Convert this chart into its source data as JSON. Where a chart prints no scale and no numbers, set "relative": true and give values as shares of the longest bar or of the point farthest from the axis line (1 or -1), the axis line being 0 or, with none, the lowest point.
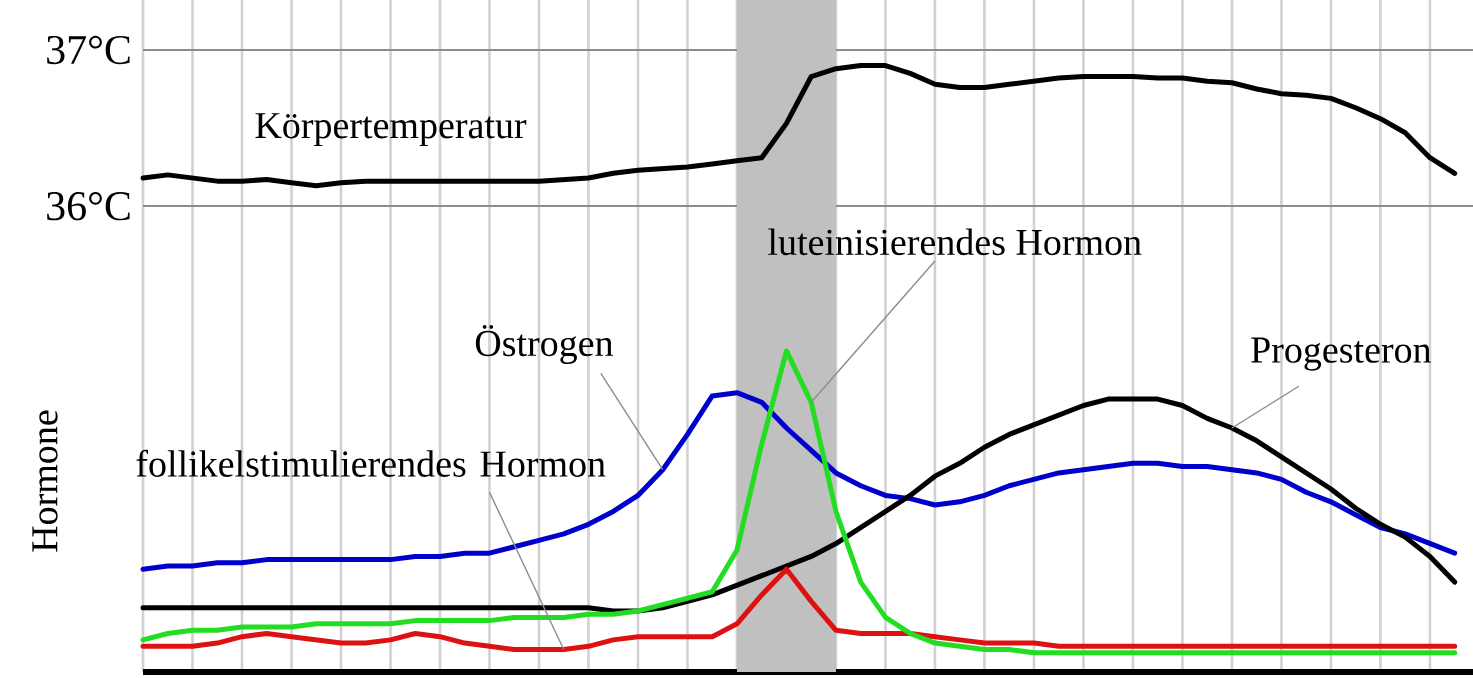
{
  "chart_data": [
    {
      "type": "line",
      "ylim": [
        35.86,
        37.32
      ],
      "grid": true,
      "tick_labels": "y",
      "categories": [
        null,
        null,
        null,
        null,
        null,
        null,
        null,
        null,
        null,
        null,
        null,
        null,
        null,
        null,
        null,
        null,
        null,
        null,
        null,
        null,
        null,
        null,
        null,
        null,
        null,
        null,
        null,
        null,
        null,
        null,
        null,
        null,
        null,
        null,
        null,
        null,
        null,
        null,
        null,
        null,
        null,
        null,
        null,
        null,
        null,
        null,
        null,
        null,
        null,
        null,
        null,
        null,
        null,
        null
      ],
      "yticks": [
        {
          "value": 36,
          "label": "36°C"
        },
        {
          "value": 37,
          "label": "37°C"
        }
      ],
      "series": [
        {
          "name": "Körpertemperatur",
          "color": "#000000",
          "values": [
            36.18,
            36.2,
            36.18,
            36.16,
            36.16,
            36.17,
            36.15,
            36.13,
            36.15,
            36.16,
            36.16,
            36.16,
            36.16,
            36.16,
            36.16,
            36.16,
            36.16,
            36.17,
            36.18,
            36.21,
            36.23,
            36.24,
            36.25,
            36.27,
            36.29,
            36.31,
            36.53,
            36.83,
            36.88,
            36.9,
            36.9,
            36.85,
            36.78,
            36.76,
            36.76,
            36.78,
            36.8,
            36.82,
            36.83,
            36.83,
            36.83,
            36.82,
            36.82,
            36.8,
            36.79,
            36.75,
            36.72,
            36.71,
            36.69,
            36.63,
            36.56,
            36.47,
            36.31,
            36.21
          ]
        }
      ]
    },
    {
      "type": "line",
      "relative": true,
      "grid": "x",
      "tick_labels": false,
      "ylabel": "Hormone",
      "categories": [
        null,
        null,
        null,
        null,
        null,
        null,
        null,
        null,
        null,
        null,
        null,
        null,
        null,
        null,
        null,
        null,
        null,
        null,
        null,
        null,
        null,
        null,
        null,
        null,
        null,
        null,
        null,
        null,
        null,
        null,
        null,
        null,
        null,
        null,
        null,
        null,
        null,
        null,
        null,
        null,
        null,
        null,
        null,
        null,
        null,
        null,
        null,
        null,
        null,
        null,
        null,
        null,
        null,
        null
      ],
      "series": [
        {
          "name": "Östrogen",
          "color": "#0000cc",
          "values": [
            0.32,
            0.33,
            0.33,
            0.34,
            0.34,
            0.35,
            0.35,
            0.35,
            0.35,
            0.35,
            0.35,
            0.36,
            0.36,
            0.37,
            0.37,
            0.39,
            0.41,
            0.43,
            0.46,
            0.5,
            0.55,
            0.63,
            0.74,
            0.86,
            0.87,
            0.84,
            0.76,
            0.69,
            0.62,
            0.58,
            0.55,
            0.54,
            0.52,
            0.53,
            0.55,
            0.58,
            0.6,
            0.62,
            0.63,
            0.64,
            0.65,
            0.65,
            0.64,
            0.64,
            0.63,
            0.62,
            0.6,
            0.56,
            0.53,
            0.49,
            0.45,
            0.43,
            0.4,
            0.37
          ]
        },
        {
          "name": "Progesteron",
          "color": "#000000",
          "values": [
            0.2,
            0.2,
            0.2,
            0.2,
            0.2,
            0.2,
            0.2,
            0.2,
            0.2,
            0.2,
            0.2,
            0.2,
            0.2,
            0.2,
            0.2,
            0.2,
            0.2,
            0.2,
            0.2,
            0.19,
            0.19,
            0.2,
            0.22,
            0.24,
            0.27,
            0.3,
            0.33,
            0.36,
            0.4,
            0.45,
            0.5,
            0.55,
            0.61,
            0.65,
            0.7,
            0.74,
            0.77,
            0.8,
            0.83,
            0.85,
            0.85,
            0.85,
            0.83,
            0.79,
            0.76,
            0.72,
            0.67,
            0.62,
            0.57,
            0.51,
            0.46,
            0.42,
            0.36,
            0.28
          ]
        },
        {
          "name": "follikelstimulierendes Hormon",
          "color": "#dd1111",
          "values": [
            0.08,
            0.08,
            0.08,
            0.09,
            0.11,
            0.12,
            0.11,
            0.1,
            0.09,
            0.09,
            0.1,
            0.12,
            0.11,
            0.09,
            0.08,
            0.07,
            0.07,
            0.07,
            0.08,
            0.1,
            0.11,
            0.11,
            0.11,
            0.11,
            0.15,
            0.24,
            0.32,
            0.22,
            0.13,
            0.12,
            0.12,
            0.12,
            0.11,
            0.1,
            0.09,
            0.09,
            0.09,
            0.08,
            0.08,
            0.08,
            0.08,
            0.08,
            0.08,
            0.08,
            0.08,
            0.08,
            0.08,
            0.08,
            0.08,
            0.08,
            0.08,
            0.08,
            0.08,
            0.08
          ]
        },
        {
          "name": "luteinisierendes Hormon",
          "color": "#22dd22",
          "values": [
            0.1,
            0.12,
            0.13,
            0.13,
            0.14,
            0.14,
            0.14,
            0.15,
            0.15,
            0.15,
            0.15,
            0.16,
            0.16,
            0.16,
            0.16,
            0.17,
            0.17,
            0.17,
            0.18,
            0.18,
            0.19,
            0.21,
            0.23,
            0.25,
            0.38,
            0.71,
            1.0,
            0.84,
            0.5,
            0.28,
            0.17,
            0.12,
            0.09,
            0.08,
            0.07,
            0.07,
            0.06,
            0.06,
            0.06,
            0.06,
            0.06,
            0.06,
            0.06,
            0.06,
            0.06,
            0.06,
            0.06,
            0.06,
            0.06,
            0.06,
            0.06,
            0.06,
            0.06,
            0.06
          ]
        }
      ]
    }
  ]
}
